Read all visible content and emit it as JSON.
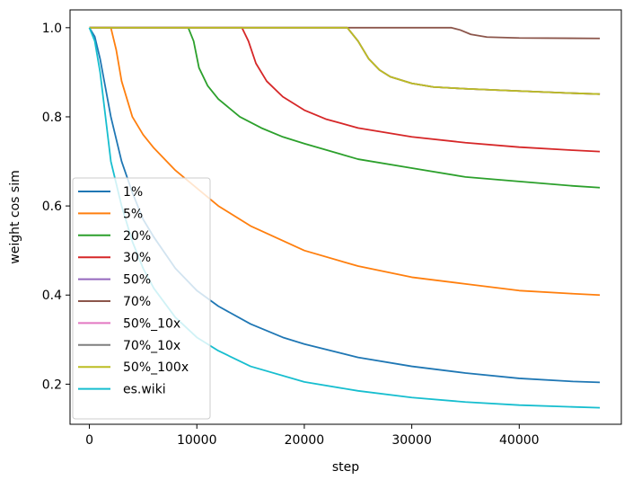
{
  "chart_data": {
    "type": "line",
    "xlabel": "step",
    "ylabel": "weight cos sim",
    "xlim": [
      -1800,
      49500
    ],
    "ylim": [
      0.11,
      1.04
    ],
    "xticks": [
      0,
      10000,
      20000,
      30000,
      40000
    ],
    "xtick_labels": [
      "0",
      "10000",
      "20000",
      "30000",
      "40000"
    ],
    "yticks": [
      0.2,
      0.4,
      0.6,
      0.8,
      1.0
    ],
    "ytick_labels": [
      "0.2",
      "0.4",
      "0.6",
      "0.8",
      "1.0"
    ],
    "grid": false,
    "legend_position": "lower-left",
    "series": [
      {
        "name": "1%",
        "color": "#1f77b4",
        "points": [
          [
            0,
            1.0
          ],
          [
            500,
            0.98
          ],
          [
            1000,
            0.93
          ],
          [
            2000,
            0.8
          ],
          [
            3000,
            0.7
          ],
          [
            4000,
            0.63
          ],
          [
            5000,
            0.57
          ],
          [
            6000,
            0.53
          ],
          [
            8000,
            0.46
          ],
          [
            10000,
            0.41
          ],
          [
            12000,
            0.375
          ],
          [
            15000,
            0.335
          ],
          [
            18000,
            0.305
          ],
          [
            20000,
            0.29
          ],
          [
            25000,
            0.26
          ],
          [
            30000,
            0.24
          ],
          [
            35000,
            0.225
          ],
          [
            40000,
            0.213
          ],
          [
            45000,
            0.206
          ],
          [
            47500,
            0.204
          ]
        ]
      },
      {
        "name": "5%",
        "color": "#ff7f0e",
        "points": [
          [
            0,
            1.0
          ],
          [
            2000,
            1.0
          ],
          [
            2500,
            0.95
          ],
          [
            3000,
            0.88
          ],
          [
            4000,
            0.8
          ],
          [
            5000,
            0.76
          ],
          [
            6000,
            0.73
          ],
          [
            8000,
            0.68
          ],
          [
            10000,
            0.64
          ],
          [
            12000,
            0.6
          ],
          [
            15000,
            0.555
          ],
          [
            20000,
            0.5
          ],
          [
            25000,
            0.465
          ],
          [
            30000,
            0.44
          ],
          [
            35000,
            0.425
          ],
          [
            40000,
            0.41
          ],
          [
            45000,
            0.403
          ],
          [
            47500,
            0.4
          ]
        ]
      },
      {
        "name": "20%",
        "color": "#2ca02c",
        "points": [
          [
            0,
            1.0
          ],
          [
            9200,
            1.0
          ],
          [
            9700,
            0.97
          ],
          [
            10200,
            0.91
          ],
          [
            11000,
            0.87
          ],
          [
            12000,
            0.84
          ],
          [
            14000,
            0.8
          ],
          [
            16000,
            0.775
          ],
          [
            18000,
            0.755
          ],
          [
            20000,
            0.74
          ],
          [
            25000,
            0.705
          ],
          [
            30000,
            0.685
          ],
          [
            35000,
            0.665
          ],
          [
            40000,
            0.655
          ],
          [
            45000,
            0.645
          ],
          [
            47500,
            0.641
          ]
        ]
      },
      {
        "name": "30%",
        "color": "#d62728",
        "points": [
          [
            0,
            1.0
          ],
          [
            14200,
            1.0
          ],
          [
            14800,
            0.97
          ],
          [
            15500,
            0.92
          ],
          [
            16500,
            0.88
          ],
          [
            18000,
            0.845
          ],
          [
            20000,
            0.815
          ],
          [
            22000,
            0.795
          ],
          [
            25000,
            0.775
          ],
          [
            30000,
            0.755
          ],
          [
            35000,
            0.742
          ],
          [
            40000,
            0.732
          ],
          [
            45000,
            0.725
          ],
          [
            47500,
            0.722
          ]
        ]
      },
      {
        "name": "50%",
        "color": "#9467bd",
        "points": [
          [
            0,
            1.0
          ],
          [
            24000,
            1.0
          ],
          [
            25000,
            0.97
          ],
          [
            26000,
            0.93
          ],
          [
            27000,
            0.905
          ],
          [
            28000,
            0.89
          ],
          [
            30000,
            0.875
          ],
          [
            32000,
            0.867
          ],
          [
            35000,
            0.863
          ],
          [
            40000,
            0.858
          ],
          [
            45000,
            0.853
          ],
          [
            47500,
            0.851
          ]
        ]
      },
      {
        "name": "70%",
        "color": "#8c564b",
        "points": [
          [
            0,
            1.0
          ],
          [
            33700,
            1.0
          ],
          [
            34500,
            0.995
          ],
          [
            35500,
            0.985
          ],
          [
            37000,
            0.979
          ],
          [
            40000,
            0.977
          ],
          [
            47500,
            0.976
          ]
        ]
      },
      {
        "name": "50%_10x",
        "color": "#e377c2",
        "points": [
          [
            0,
            1.0
          ],
          [
            24000,
            1.0
          ],
          [
            25000,
            0.97
          ],
          [
            26000,
            0.93
          ],
          [
            27000,
            0.905
          ],
          [
            28000,
            0.89
          ],
          [
            30000,
            0.875
          ],
          [
            32000,
            0.867
          ],
          [
            35000,
            0.863
          ],
          [
            40000,
            0.858
          ],
          [
            45000,
            0.853
          ],
          [
            47500,
            0.851
          ]
        ]
      },
      {
        "name": "70%_10x",
        "color": "#7f7f7f",
        "points": [
          [
            0,
            1.0
          ],
          [
            24000,
            1.0
          ],
          [
            25000,
            0.97
          ],
          [
            26000,
            0.93
          ],
          [
            27000,
            0.905
          ],
          [
            28000,
            0.89
          ],
          [
            30000,
            0.875
          ],
          [
            32000,
            0.867
          ],
          [
            35000,
            0.863
          ],
          [
            40000,
            0.858
          ],
          [
            45000,
            0.853
          ],
          [
            47500,
            0.851
          ]
        ]
      },
      {
        "name": "50%_100x",
        "color": "#bcbd22",
        "points": [
          [
            0,
            1.0
          ],
          [
            24000,
            1.0
          ],
          [
            25000,
            0.97
          ],
          [
            26000,
            0.93
          ],
          [
            27000,
            0.905
          ],
          [
            28000,
            0.89
          ],
          [
            30000,
            0.875
          ],
          [
            32000,
            0.867
          ],
          [
            35000,
            0.863
          ],
          [
            40000,
            0.858
          ],
          [
            45000,
            0.853
          ],
          [
            47500,
            0.851
          ]
        ]
      },
      {
        "name": "es.wiki",
        "color": "#17becf",
        "points": [
          [
            0,
            1.0
          ],
          [
            500,
            0.97
          ],
          [
            1000,
            0.9
          ],
          [
            1500,
            0.8
          ],
          [
            2000,
            0.7
          ],
          [
            3000,
            0.6
          ],
          [
            4000,
            0.52
          ],
          [
            5000,
            0.46
          ],
          [
            6000,
            0.415
          ],
          [
            8000,
            0.35
          ],
          [
            10000,
            0.305
          ],
          [
            12000,
            0.275
          ],
          [
            15000,
            0.24
          ],
          [
            20000,
            0.205
          ],
          [
            25000,
            0.185
          ],
          [
            30000,
            0.17
          ],
          [
            35000,
            0.16
          ],
          [
            40000,
            0.153
          ],
          [
            45000,
            0.149
          ],
          [
            47500,
            0.147
          ]
        ]
      }
    ]
  }
}
